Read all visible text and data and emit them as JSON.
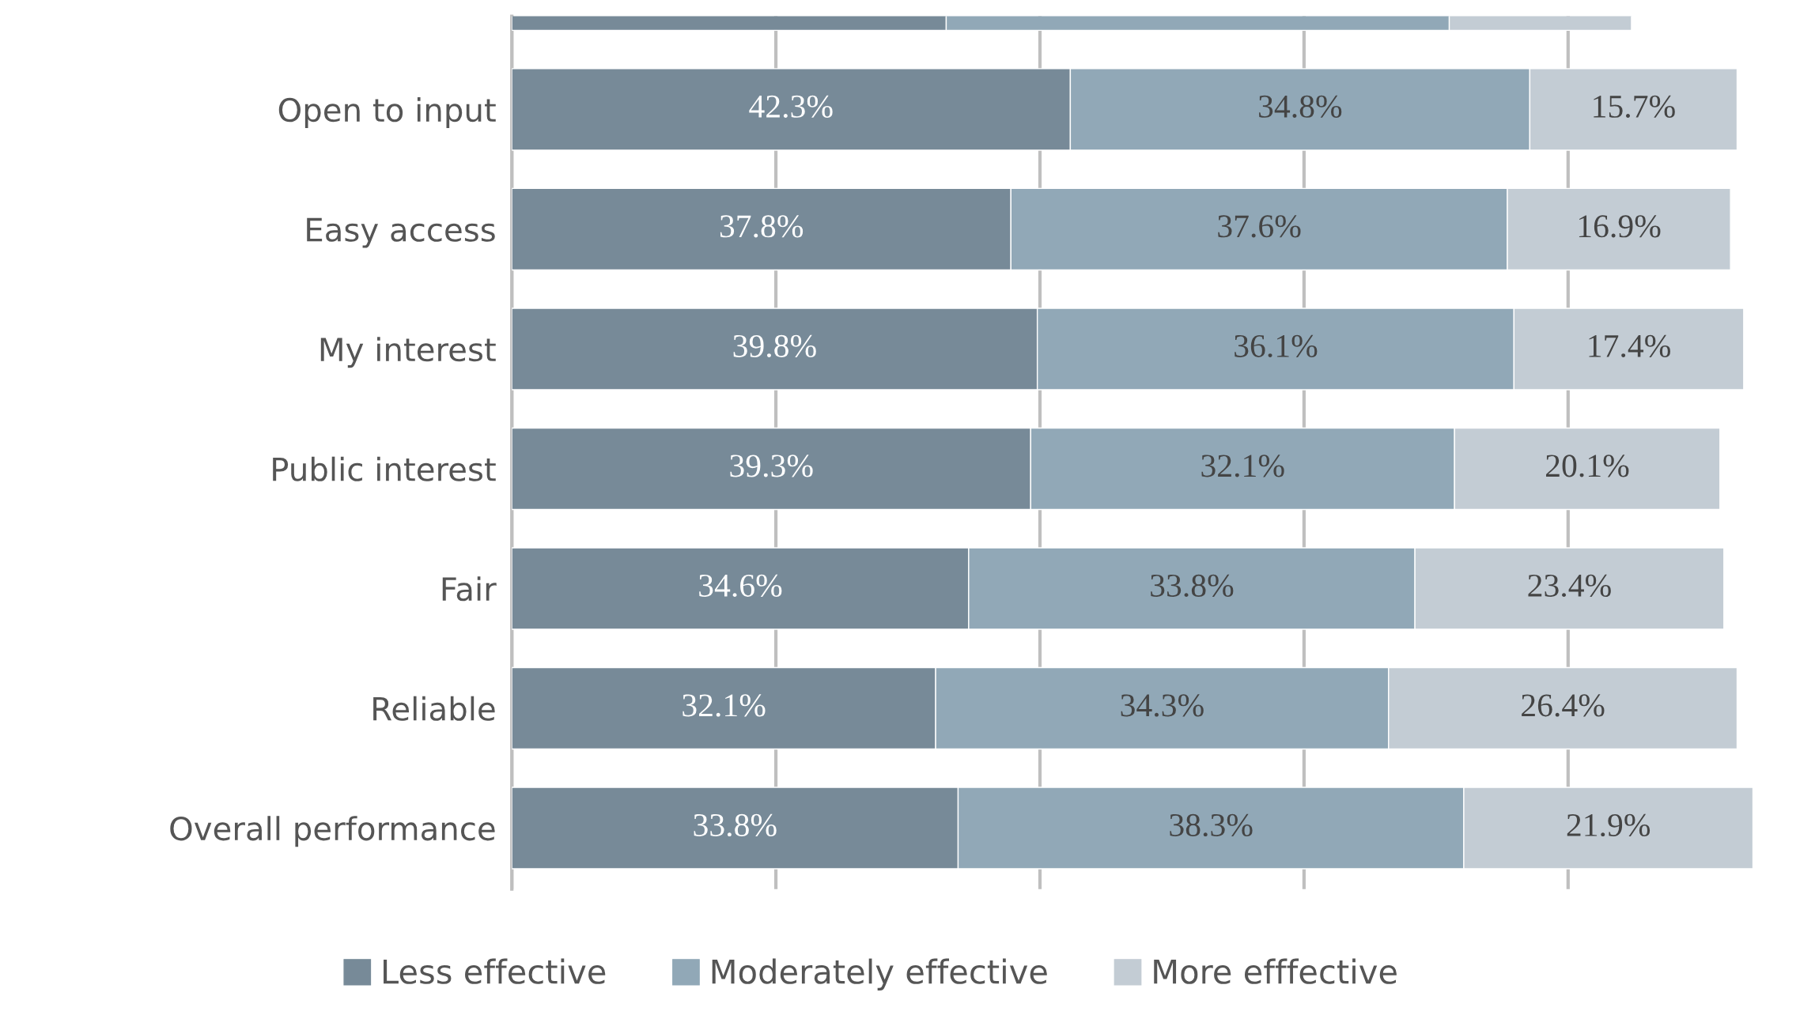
{
  "chart_data": {
    "type": "bar",
    "orientation": "horizontal",
    "stacked": true,
    "categories": [
      null,
      "Open to input",
      "Easy access",
      "My interest",
      "Public interest",
      "Fair",
      "Reliable",
      "Overall performance"
    ],
    "series": [
      {
        "name": "Less effective",
        "color": "#778a98",
        "values": [
          32.9,
          42.3,
          37.8,
          39.8,
          39.3,
          34.6,
          32.1,
          33.8
        ],
        "value_labels": [
          null,
          "42.3%",
          "37.8%",
          "39.8%",
          "39.3%",
          "34.6%",
          "32.1%",
          "33.8%"
        ]
      },
      {
        "name": "Moderately effective",
        "color": "#91a8b7",
        "values": [
          38.1,
          34.8,
          37.6,
          36.1,
          32.1,
          33.8,
          34.3,
          38.3
        ],
        "value_labels": [
          null,
          "34.8%",
          "37.6%",
          "36.1%",
          "32.1%",
          "33.8%",
          "34.3%",
          "38.3%"
        ]
      },
      {
        "name": "More efffective",
        "color": "#c3ccd4",
        "values": [
          13.8,
          15.7,
          16.9,
          17.4,
          20.1,
          23.4,
          26.4,
          21.9
        ],
        "value_labels": [
          null,
          "15.7%",
          "16.9%",
          "17.4%",
          "20.1%",
          "23.4%",
          "26.4%",
          "21.9%"
        ]
      }
    ],
    "grid": "x",
    "tick_labels": "y",
    "legend": "bottom"
  }
}
